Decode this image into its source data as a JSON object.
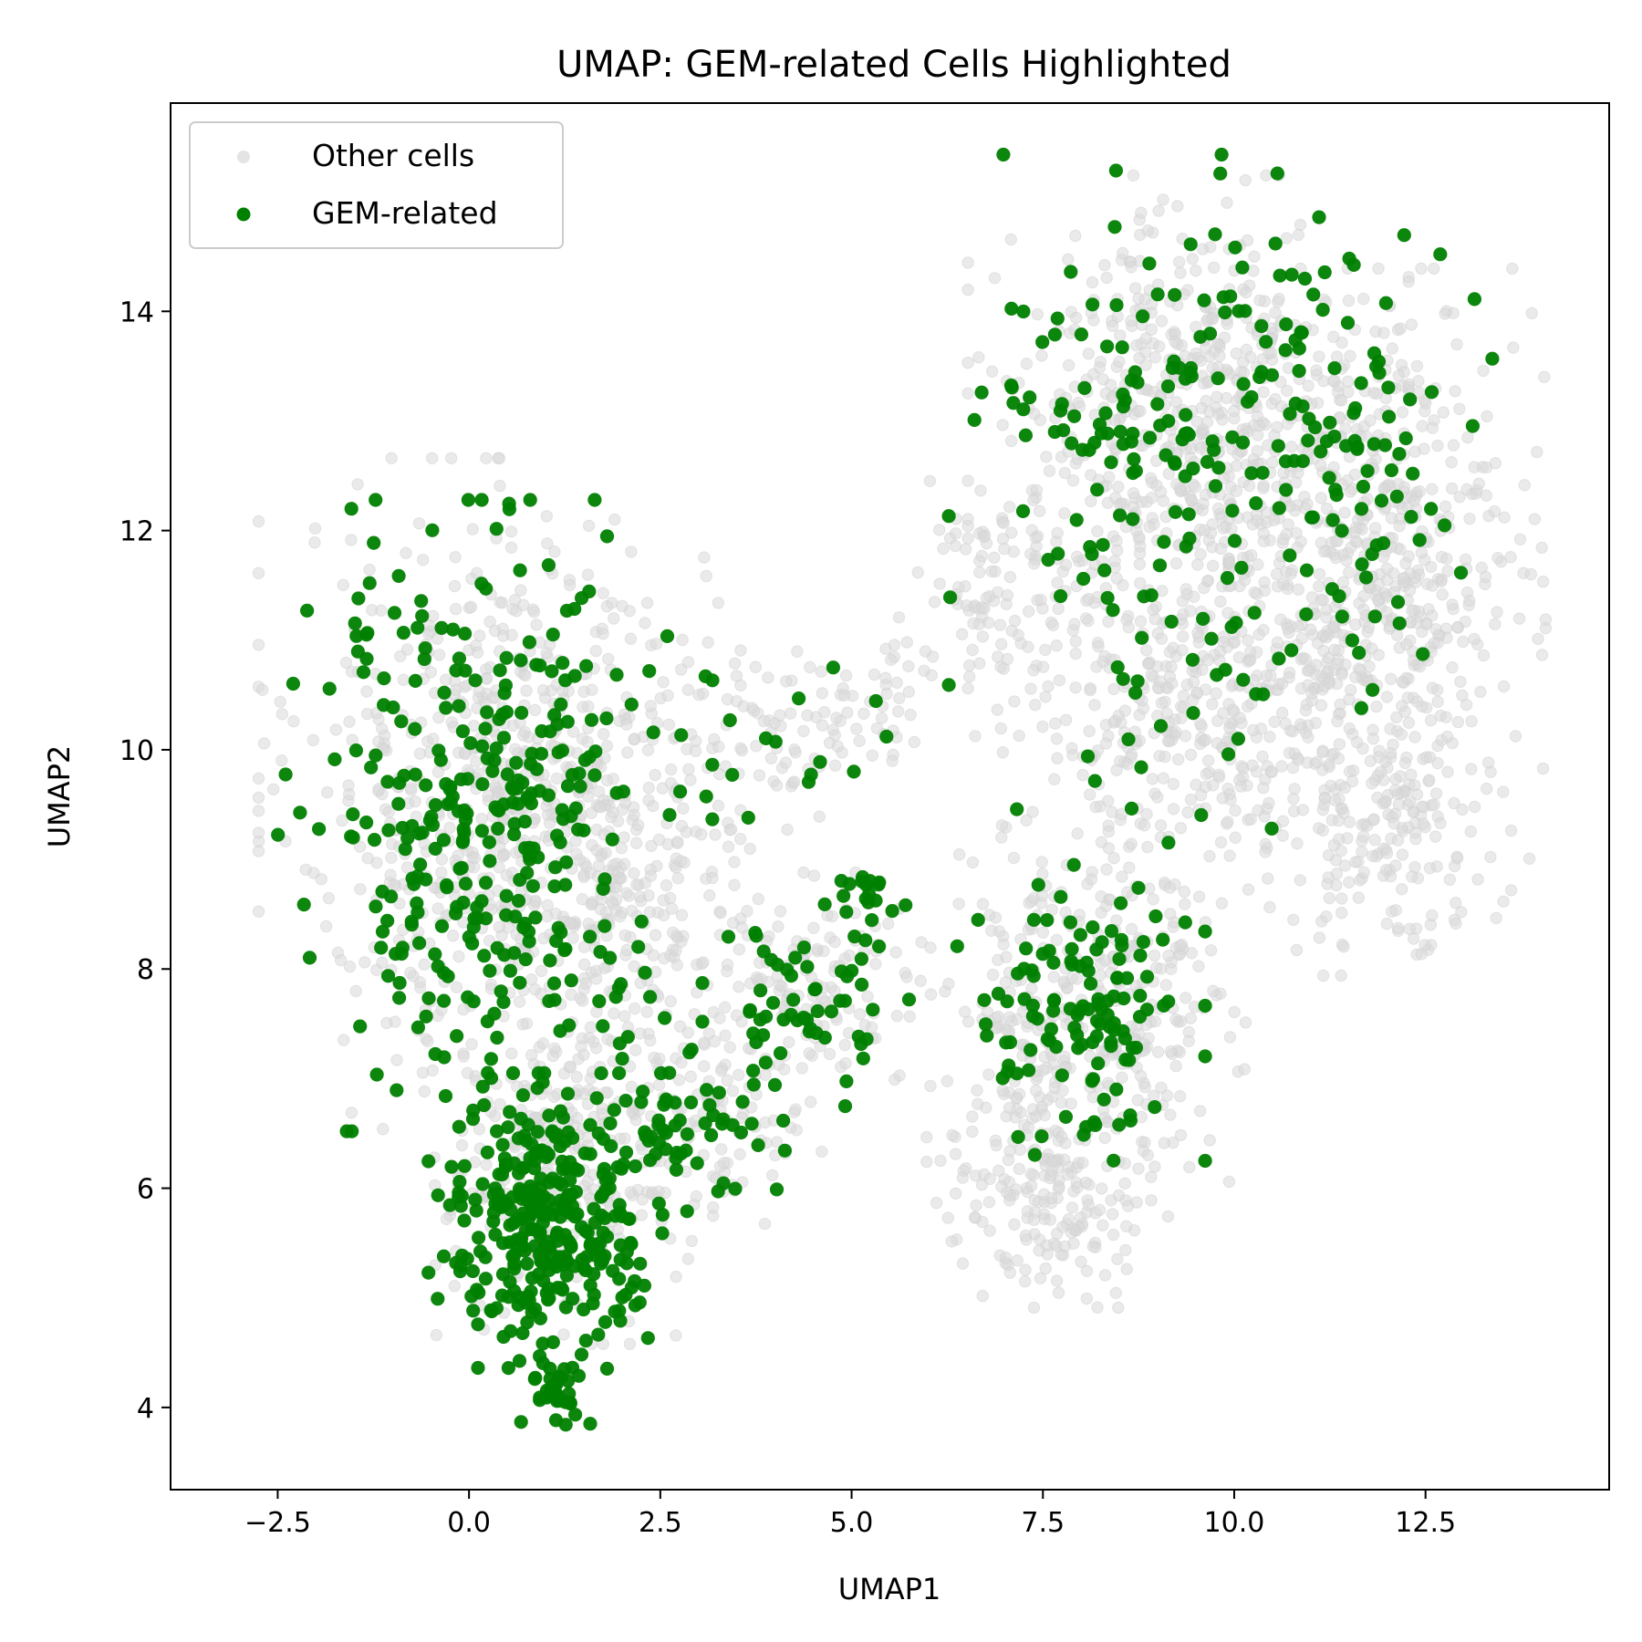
{
  "chart_data": {
    "type": "scatter",
    "title": "UMAP: GEM-related Cells Highlighted",
    "xlabel": "UMAP1",
    "ylabel": "UMAP2",
    "xlim": [
      -3.9,
      14.9
    ],
    "ylim": [
      3.25,
      15.9
    ],
    "xticks": [
      -2.5,
      0.0,
      2.5,
      5.0,
      7.5,
      10.0,
      12.5
    ],
    "xtick_labels": [
      "−2.5",
      "0.0",
      "2.5",
      "5.0",
      "7.5",
      "10.0",
      "12.5"
    ],
    "yticks": [
      4,
      6,
      8,
      10,
      12,
      14
    ],
    "ytick_labels": [
      "4",
      "6",
      "8",
      "10",
      "12",
      "14"
    ],
    "grid": false,
    "legend": {
      "placement": "top-left"
    },
    "series": [
      {
        "name": "Other cells",
        "color": "#d9d9d9",
        "regions": [
          {
            "cx": 0.4,
            "cy": 9.6,
            "sx": 1.75,
            "sy": 1.7,
            "n": 620
          },
          {
            "cx": 2.0,
            "cy": 9.0,
            "sx": 1.2,
            "sy": 1.3,
            "n": 260
          },
          {
            "cx": 1.3,
            "cy": 6.2,
            "sx": 1.05,
            "sy": 0.9,
            "n": 260
          },
          {
            "cx": 3.2,
            "cy": 6.8,
            "sx": 0.9,
            "sy": 0.7,
            "n": 110
          },
          {
            "cx": 4.6,
            "cy": 7.8,
            "sx": 0.9,
            "sy": 0.6,
            "n": 120
          },
          {
            "cx": 4.2,
            "cy": 10.2,
            "sx": 0.9,
            "sy": 0.45,
            "n": 70
          },
          {
            "cx": 5.5,
            "cy": 10.5,
            "sx": 0.5,
            "sy": 0.35,
            "n": 25
          },
          {
            "cx": 9.4,
            "cy": 12.9,
            "sx": 1.6,
            "sy": 1.3,
            "n": 620
          },
          {
            "cx": 12.0,
            "cy": 11.6,
            "sx": 1.15,
            "sy": 1.55,
            "n": 520
          },
          {
            "cx": 9.6,
            "cy": 10.4,
            "sx": 1.7,
            "sy": 1.0,
            "n": 420
          },
          {
            "cx": 8.1,
            "cy": 7.6,
            "sx": 1.15,
            "sy": 0.95,
            "n": 380
          },
          {
            "cx": 7.6,
            "cy": 5.9,
            "sx": 0.9,
            "sy": 0.55,
            "n": 170
          },
          {
            "cx": 12.0,
            "cy": 9.2,
            "sx": 0.9,
            "sy": 0.7,
            "n": 140
          },
          {
            "cx": 7.0,
            "cy": 11.5,
            "sx": 0.8,
            "sy": 0.6,
            "n": 90
          }
        ]
      },
      {
        "name": "GEM-related",
        "color": "#008000",
        "regions": [
          {
            "cx": 0.3,
            "cy": 9.4,
            "sx": 1.6,
            "sy": 1.6,
            "n": 340
          },
          {
            "cx": 1.0,
            "cy": 5.7,
            "sx": 0.85,
            "sy": 0.75,
            "n": 330
          },
          {
            "cx": 1.2,
            "cy": 4.1,
            "sx": 0.3,
            "sy": 0.18,
            "n": 30
          },
          {
            "cx": 2.9,
            "cy": 6.6,
            "sx": 0.7,
            "sy": 0.45,
            "n": 55
          },
          {
            "cx": 4.4,
            "cy": 7.6,
            "sx": 0.75,
            "sy": 0.55,
            "n": 55
          },
          {
            "cx": 5.2,
            "cy": 8.5,
            "sx": 0.35,
            "sy": 0.3,
            "n": 20
          },
          {
            "cx": 8.0,
            "cy": 7.6,
            "sx": 0.9,
            "sy": 0.75,
            "n": 125
          },
          {
            "cx": 9.6,
            "cy": 13.0,
            "sx": 1.85,
            "sy": 1.35,
            "n": 190
          },
          {
            "cx": 12.0,
            "cy": 12.5,
            "sx": 0.8,
            "sy": 1.4,
            "n": 45
          },
          {
            "cx": 9.5,
            "cy": 10.6,
            "sx": 1.3,
            "sy": 0.9,
            "n": 35
          },
          {
            "cx": 4.4,
            "cy": 10.1,
            "sx": 0.8,
            "sy": 0.4,
            "n": 14
          }
        ]
      }
    ]
  }
}
